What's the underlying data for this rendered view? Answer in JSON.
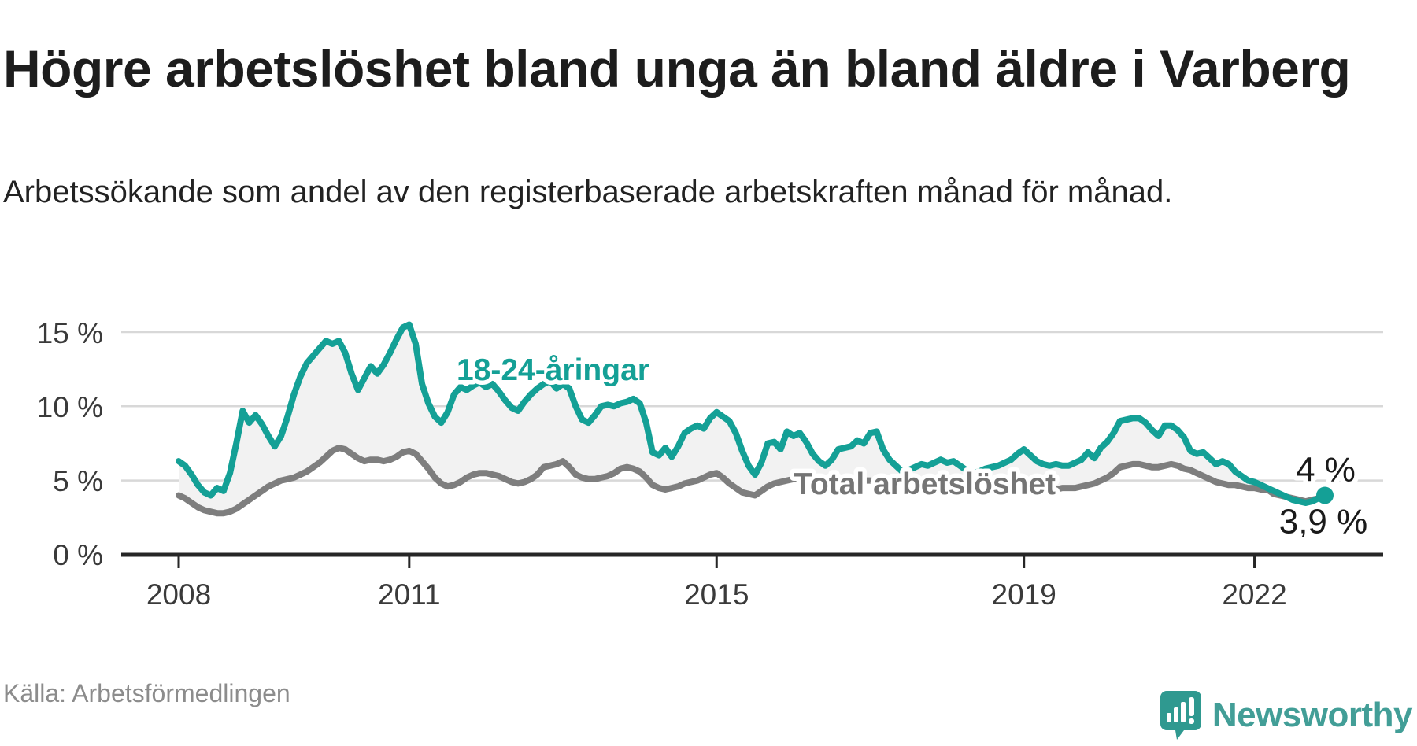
{
  "header": {
    "title": "Högre arbetslöshet bland unga än bland äldre i Varberg",
    "subtitle": "Arbetssökande som andel av den registerbaserade arbetskraften månad för månad."
  },
  "chart": {
    "y_ticks": [
      {
        "label": "15 %",
        "value": 15
      },
      {
        "label": "10 %",
        "value": 10
      },
      {
        "label": "5 %",
        "value": 5
      },
      {
        "label": "0 %",
        "value": 0
      }
    ],
    "x_ticks": [
      {
        "label": "2008",
        "year": 2008
      },
      {
        "label": "2011",
        "year": 2011
      },
      {
        "label": "2015",
        "year": 2015
      },
      {
        "label": "2019",
        "year": 2019
      },
      {
        "label": "2022",
        "year": 2022
      }
    ],
    "series_labels": {
      "youth": "18-24-åringar",
      "total": "Total arbetslöshet"
    },
    "end_labels": {
      "youth": "4 %",
      "total": "3,9 %"
    },
    "colors": {
      "youth": "#14a096",
      "total": "#7e7e7e",
      "fill": "#f2f2f2",
      "gridline": "#d8d8d8",
      "axis": "#262626"
    }
  },
  "chart_data": {
    "type": "line",
    "unit": "%",
    "frequency": "monthly",
    "x_start": "2008-01",
    "x_end": "2022-12",
    "ylim": [
      0,
      16
    ],
    "y_gridlines": [
      5,
      10,
      15
    ],
    "grid": "horizontal-only",
    "legend_position": "inline-labels",
    "series": [
      {
        "name": "18-24-åringar",
        "color": "#14a096",
        "end_label": "4 %",
        "last_value": 4.0,
        "values": [
          6.3,
          6.0,
          5.4,
          4.7,
          4.2,
          4.0,
          4.5,
          4.3,
          5.5,
          7.5,
          9.7,
          8.9,
          9.4,
          8.8,
          8.0,
          7.3,
          8.0,
          9.3,
          10.8,
          12.0,
          12.9,
          13.4,
          13.9,
          14.4,
          14.2,
          14.4,
          13.6,
          12.2,
          11.1,
          11.9,
          12.7,
          12.2,
          12.8,
          13.6,
          14.5,
          15.3,
          15.5,
          14.2,
          11.5,
          10.2,
          9.3,
          8.9,
          9.6,
          10.8,
          11.3,
          11.1,
          11.4,
          11.6,
          11.3,
          11.5,
          11.0,
          10.4,
          9.9,
          9.7,
          10.3,
          10.8,
          11.2,
          11.5,
          11.7,
          11.2,
          11.5,
          11.2,
          10.0,
          9.1,
          8.9,
          9.4,
          10.0,
          10.1,
          10.0,
          10.2,
          10.3,
          10.5,
          10.2,
          8.9,
          6.9,
          6.7,
          7.2,
          6.6,
          7.3,
          8.2,
          8.5,
          8.7,
          8.5,
          9.2,
          9.6,
          9.3,
          9.0,
          8.2,
          7.0,
          6.0,
          5.4,
          6.2,
          7.5,
          7.6,
          7.1,
          8.3,
          8.0,
          8.2,
          7.6,
          6.8,
          6.3,
          6.0,
          6.4,
          7.1,
          7.2,
          7.3,
          7.7,
          7.5,
          8.2,
          8.3,
          7.1,
          6.4,
          6.0,
          5.6,
          5.7,
          5.9,
          6.1,
          6.0,
          6.2,
          6.4,
          6.2,
          6.3,
          6.0,
          5.7,
          5.5,
          5.6,
          5.8,
          5.9,
          6.0,
          6.2,
          6.4,
          6.8,
          7.1,
          6.7,
          6.3,
          6.1,
          6.0,
          6.1,
          6.0,
          6.0,
          6.2,
          6.4,
          6.9,
          6.5,
          7.2,
          7.6,
          8.2,
          9.0,
          9.1,
          9.2,
          9.2,
          8.9,
          8.4,
          8.0,
          8.7,
          8.7,
          8.4,
          7.9,
          7.0,
          6.8,
          6.9,
          6.5,
          6.1,
          6.3,
          6.1,
          5.6,
          5.3,
          5.0,
          4.9,
          4.7,
          4.5,
          4.3,
          4.1,
          3.9,
          3.7,
          3.6,
          3.5,
          3.6,
          3.8,
          4.0
        ]
      },
      {
        "name": "Total arbetslöshet",
        "color": "#7e7e7e",
        "end_label": "3,9 %",
        "last_value": 3.9,
        "values": [
          4.0,
          3.8,
          3.5,
          3.2,
          3.0,
          2.9,
          2.8,
          2.8,
          2.9,
          3.1,
          3.4,
          3.7,
          4.0,
          4.3,
          4.6,
          4.8,
          5.0,
          5.1,
          5.2,
          5.4,
          5.6,
          5.9,
          6.2,
          6.6,
          7.0,
          7.2,
          7.1,
          6.8,
          6.5,
          6.3,
          6.4,
          6.4,
          6.3,
          6.4,
          6.6,
          6.9,
          7.0,
          6.8,
          6.3,
          5.8,
          5.2,
          4.8,
          4.6,
          4.7,
          4.9,
          5.2,
          5.4,
          5.5,
          5.5,
          5.4,
          5.3,
          5.1,
          4.9,
          4.8,
          4.9,
          5.1,
          5.4,
          5.9,
          6.0,
          6.1,
          6.3,
          5.9,
          5.4,
          5.2,
          5.1,
          5.1,
          5.2,
          5.3,
          5.5,
          5.8,
          5.9,
          5.8,
          5.6,
          5.2,
          4.7,
          4.5,
          4.4,
          4.5,
          4.6,
          4.8,
          4.9,
          5.0,
          5.2,
          5.4,
          5.5,
          5.2,
          4.8,
          4.5,
          4.2,
          4.1,
          4.0,
          4.3,
          4.6,
          4.8,
          4.9,
          5.0,
          5.1,
          5.1,
          4.9,
          4.7,
          4.6,
          4.5,
          4.6,
          4.8,
          4.9,
          5.0,
          5.0,
          5.0,
          5.0,
          4.9,
          4.7,
          4.5,
          4.4,
          4.4,
          4.5,
          4.5,
          4.6,
          4.6,
          4.6,
          4.6,
          4.6,
          4.5,
          4.4,
          4.3,
          4.2,
          4.2,
          4.3,
          4.3,
          4.3,
          4.3,
          4.4,
          4.4,
          4.5,
          4.4,
          4.3,
          4.3,
          4.3,
          4.4,
          4.5,
          4.5,
          4.5,
          4.6,
          4.7,
          4.8,
          5.0,
          5.2,
          5.5,
          5.9,
          6.0,
          6.1,
          6.1,
          6.0,
          5.9,
          5.9,
          6.0,
          6.1,
          6.0,
          5.8,
          5.7,
          5.5,
          5.3,
          5.1,
          4.9,
          4.8,
          4.7,
          4.7,
          4.6,
          4.5,
          4.5,
          4.4,
          4.4,
          4.1,
          4.0,
          3.9,
          3.8,
          3.7,
          3.6,
          3.7,
          3.8,
          3.9
        ]
      }
    ]
  },
  "footer": {
    "source": "Källa: Arbetsförmedlingen",
    "logo_text": "Newsworthy"
  }
}
